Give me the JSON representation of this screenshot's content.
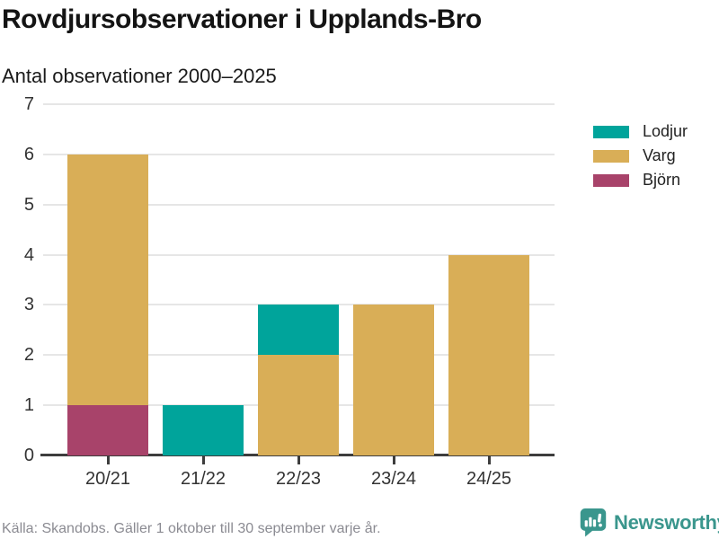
{
  "header": {
    "title": "Rovdjursobservationer i Upplands-Bro",
    "subtitle": "Antal observationer 2000–2025"
  },
  "chart_data": {
    "type": "bar",
    "stacked": true,
    "title": "Rovdjursobservationer i Upplands-Bro",
    "subtitle": "Antal observationer 2000–2025",
    "categories": [
      "20/21",
      "21/22",
      "22/23",
      "23/24",
      "24/25"
    ],
    "series": [
      {
        "name": "Lodjur",
        "color": "#00a49b",
        "values": [
          0,
          1,
          1,
          0,
          0
        ]
      },
      {
        "name": "Varg",
        "color": "#d9ae57",
        "values": [
          5,
          0,
          2,
          3,
          4
        ]
      },
      {
        "name": "Björn",
        "color": "#a8436a",
        "values": [
          1,
          0,
          0,
          0,
          0
        ]
      }
    ],
    "stack_order_bottom_to_top": [
      "Björn",
      "Varg",
      "Lodjur"
    ],
    "totals": [
      6,
      1,
      3,
      3,
      4
    ],
    "xlabel": "",
    "ylabel": "",
    "ylim": [
      0,
      7
    ],
    "yticks": [
      0,
      1,
      2,
      3,
      4,
      5,
      6,
      7
    ],
    "grid": true,
    "legend_position": "right"
  },
  "footer": {
    "source": "Källa: Skandobs. Gäller 1 oktober till 30 september varje år.",
    "brand": "Newsworthy",
    "brand_color": "#3a968d"
  },
  "colors": {
    "axis": "#3d3d3d",
    "gridline": "#e6e6e6",
    "tick_text": "#333333",
    "muted_text": "#8b8b92"
  }
}
